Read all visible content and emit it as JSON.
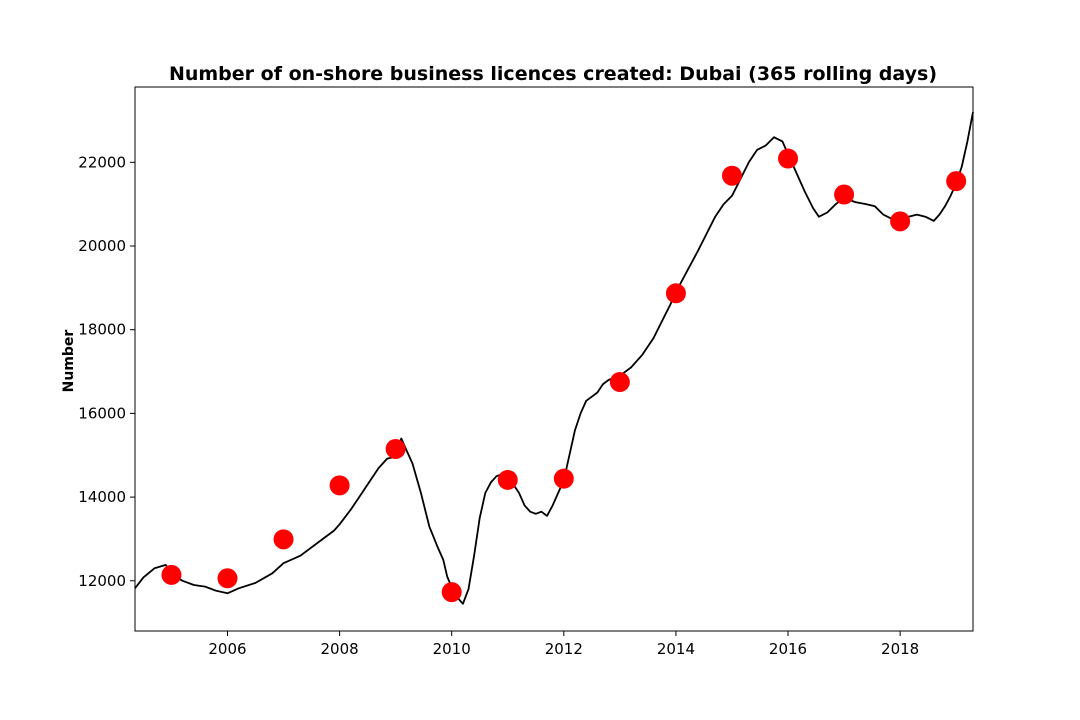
{
  "chart_data": {
    "type": "line",
    "title": "Number of on-shore business licences created: Dubai (365 rolling days)",
    "xlabel": "",
    "ylabel": "Number",
    "xlim": [
      2004.35,
      2019.3
    ],
    "ylim": [
      10800,
      23800
    ],
    "x_ticks": [
      2006,
      2008,
      2010,
      2012,
      2014,
      2016,
      2018
    ],
    "x_tick_labels": [
      "2006",
      "2008",
      "2010",
      "2012",
      "2014",
      "2016",
      "2018"
    ],
    "y_ticks": [
      12000,
      14000,
      16000,
      18000,
      20000,
      22000
    ],
    "y_tick_labels": [
      "12000",
      "14000",
      "16000",
      "18000",
      "20000",
      "22000"
    ],
    "grid": false,
    "series": [
      {
        "style": "line",
        "color": "#000000",
        "x": [
          2004.35,
          2004.5,
          2004.7,
          2004.9,
          2005.0,
          2005.2,
          2005.4,
          2005.6,
          2005.8,
          2006.0,
          2006.2,
          2006.5,
          2006.8,
          2007.0,
          2007.3,
          2007.6,
          2007.9,
          2008.0,
          2008.2,
          2008.35,
          2008.5,
          2008.7,
          2008.85,
          2008.95,
          2009.0,
          2009.1,
          2009.2,
          2009.3,
          2009.45,
          2009.6,
          2009.75,
          2009.85,
          2009.92,
          2010.0,
          2010.1,
          2010.2,
          2010.3,
          2010.4,
          2010.5,
          2010.6,
          2010.7,
          2010.8,
          2010.9,
          2011.0,
          2011.1,
          2011.2,
          2011.3,
          2011.4,
          2011.5,
          2011.6,
          2011.7,
          2011.8,
          2011.9,
          2012.0,
          2012.1,
          2012.2,
          2012.3,
          2012.4,
          2012.5,
          2012.6,
          2012.7,
          2012.8,
          2012.9,
          2013.0,
          2013.2,
          2013.4,
          2013.6,
          2013.75,
          2013.9,
          2014.0,
          2014.2,
          2014.4,
          2014.55,
          2014.7,
          2014.85,
          2015.0,
          2015.15,
          2015.3,
          2015.45,
          2015.6,
          2015.75,
          2015.9,
          2016.0,
          2016.1,
          2016.2,
          2016.3,
          2016.45,
          2016.55,
          2016.7,
          2016.85,
          2017.0,
          2017.2,
          2017.4,
          2017.55,
          2017.7,
          2017.85,
          2018.0,
          2018.15,
          2018.3,
          2018.45,
          2018.6,
          2018.7,
          2018.8,
          2018.9,
          2019.0,
          2019.1,
          2019.2,
          2019.3
        ],
        "y": [
          11820,
          12080,
          12300,
          12380,
          12150,
          12000,
          11900,
          11860,
          11760,
          11700,
          11820,
          11950,
          12180,
          12420,
          12600,
          12900,
          13200,
          13350,
          13700,
          14000,
          14300,
          14700,
          14920,
          14950,
          15050,
          15400,
          15100,
          14800,
          14100,
          13300,
          12800,
          12500,
          12100,
          11850,
          11600,
          11450,
          11800,
          12600,
          13500,
          14100,
          14350,
          14500,
          14550,
          14500,
          14300,
          14100,
          13800,
          13650,
          13600,
          13650,
          13550,
          13800,
          14100,
          14400,
          15000,
          15600,
          16000,
          16300,
          16400,
          16500,
          16700,
          16800,
          16850,
          16900,
          17100,
          17400,
          17800,
          18200,
          18600,
          18900,
          19400,
          19900,
          20300,
          20700,
          21000,
          21200,
          21600,
          22000,
          22300,
          22400,
          22600,
          22500,
          22200,
          21900,
          21600,
          21300,
          20900,
          20700,
          20800,
          21000,
          21150,
          21050,
          21000,
          20950,
          20750,
          20650,
          20600,
          20700,
          20750,
          20700,
          20600,
          20750,
          20950,
          21200,
          21500,
          21900,
          22500,
          23200
        ]
      },
      {
        "style": "marker",
        "color": "#ff0000",
        "x": [
          2005.0,
          2006.0,
          2007.0,
          2008.0,
          2009.0,
          2010.0,
          2011.0,
          2012.0,
          2013.0,
          2014.0,
          2015.0,
          2016.0,
          2017.0,
          2018.0,
          2019.0
        ],
        "y": [
          12140,
          12060,
          12990,
          14280,
          15150,
          11730,
          14410,
          14440,
          16750,
          18870,
          21680,
          22090,
          21230,
          20590,
          21550
        ]
      }
    ]
  }
}
